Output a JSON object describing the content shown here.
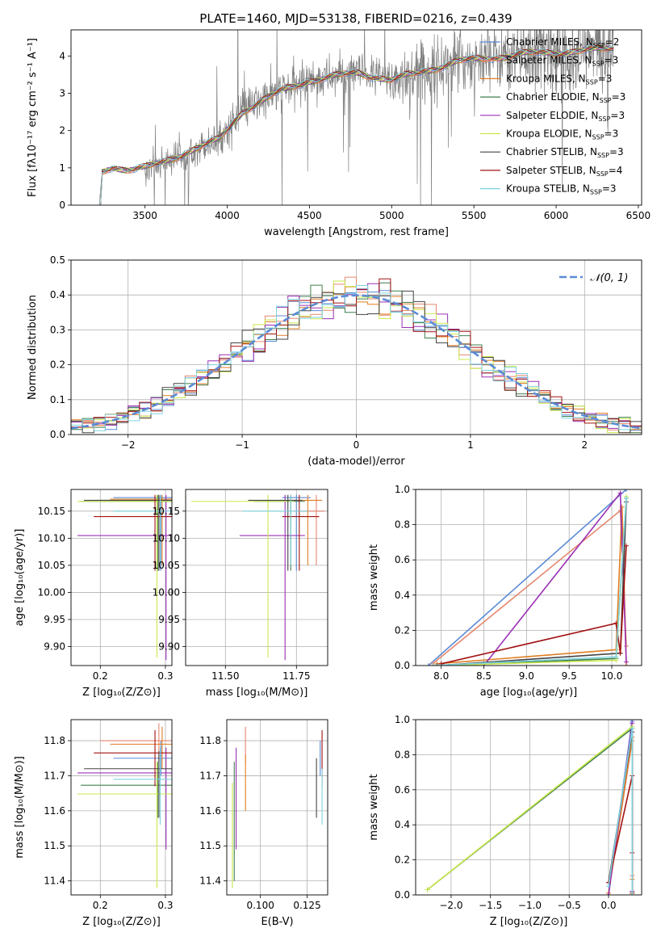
{
  "figure_title": "PLATE=1460, MJD=53138, FIBERID=0216, z=0.439",
  "legend_models": [
    {
      "name": "Chabrier MILES",
      "nssp": "2",
      "color": "#5b8bd6"
    },
    {
      "name": "Salpeter MILES",
      "nssp": "3",
      "color": "#e5866e"
    },
    {
      "name": "Kroupa MILES",
      "nssp": "3",
      "color": "#e07d22"
    },
    {
      "name": "Chabrier ELODIE",
      "nssp": "3",
      "color": "#3f7f4f"
    },
    {
      "name": "Salpeter ELODIE",
      "nssp": "3",
      "color": "#9b30b5"
    },
    {
      "name": "Kroupa ELODIE",
      "nssp": "3",
      "color": "#c9e84a"
    },
    {
      "name": "Chabrier STELIB",
      "nssp": "3",
      "color": "#444444"
    },
    {
      "name": "Salpeter STELIB",
      "nssp": "4",
      "color": "#a31212"
    },
    {
      "name": "Kroupa STELIB",
      "nssp": "3",
      "color": "#7fd3e0"
    }
  ],
  "chart_data": [
    {
      "id": "spectrum",
      "type": "line",
      "xlabel": "wavelength [Angstrom, rest frame]",
      "ylabel": "Flux [fλ10⁻¹⁷ erg cm⁻² s⁻¹ A⁻¹]",
      "xlim": [
        3050,
        6520
      ],
      "ylim": [
        0,
        4.7
      ],
      "xticks": [
        3500,
        4000,
        4500,
        5000,
        5500,
        6000,
        6500
      ],
      "yticks": [
        0,
        1,
        2,
        3,
        4
      ],
      "grid": false,
      "data_color": "#808080",
      "observed_range": [
        3200,
        6350
      ],
      "model_range": [
        3220,
        6350
      ],
      "continuum": {
        "x": [
          3220,
          3240,
          3300,
          3400,
          3500,
          3600,
          3800,
          3950,
          4100,
          4300,
          4500,
          4800,
          5000,
          5200,
          5400,
          5600,
          5800,
          6000,
          6200,
          6350
        ],
        "y": [
          0.0,
          0.88,
          1.02,
          0.97,
          1.0,
          1.12,
          1.52,
          1.75,
          2.55,
          3.0,
          3.35,
          3.55,
          3.35,
          3.6,
          3.85,
          3.95,
          4.05,
          4.1,
          4.15,
          4.2
        ]
      },
      "legend_position": "right"
    },
    {
      "id": "residuals",
      "type": "step",
      "xlabel": "(data-model)/error",
      "ylabel": "Normed distribution",
      "xlim": [
        -2.5,
        2.5
      ],
      "ylim": [
        0,
        0.5
      ],
      "xticks": [
        -2,
        -1,
        0,
        1,
        2
      ],
      "yticks": [
        0.0,
        0.1,
        0.2,
        0.3,
        0.4,
        0.5
      ],
      "grid": true,
      "bin_width": 0.1,
      "reference_curve": {
        "label": "𝒩(0, 1)",
        "mean": 0,
        "sigma": 1,
        "color": "#5b8bd6"
      },
      "legend_position": "top-right"
    },
    {
      "id": "age_vs_Z",
      "type": "errorbar",
      "xlabel": "Z [log₁₀(Z/Z⊙)]",
      "ylabel": "age  [log₁₀(age/yr)]",
      "xlim": [
        0.155,
        0.31
      ],
      "ylim": [
        9.865,
        10.19
      ],
      "xticks": [
        0.2,
        0.3
      ],
      "yticks": [
        9.9,
        9.95,
        10.0,
        10.05,
        10.1,
        10.15
      ],
      "grid": true,
      "points": [
        {
          "series": "Chabrier MILES",
          "x": 0.293,
          "xlo": 0.22,
          "xhi": 0.31,
          "y": 10.175,
          "ylo": 10.04,
          "yhi": 10.18
        },
        {
          "series": "Salpeter MILES",
          "x": 0.29,
          "xlo": 0.2,
          "xhi": 0.31,
          "y": 10.17,
          "ylo": 10.05,
          "yhi": 10.18
        },
        {
          "series": "Kroupa MILES",
          "x": 0.295,
          "xlo": 0.215,
          "xhi": 0.31,
          "y": 10.172,
          "ylo": 10.05,
          "yhi": 10.18
        },
        {
          "series": "Chabrier ELODIE",
          "x": 0.288,
          "xlo": 0.17,
          "xhi": 0.31,
          "y": 10.168,
          "ylo": 10.04,
          "yhi": 10.18
        },
        {
          "series": "Salpeter ELODIE",
          "x": 0.301,
          "xlo": 0.165,
          "xhi": 0.31,
          "y": 10.105,
          "ylo": 9.875,
          "yhi": 10.18
        },
        {
          "series": "Kroupa ELODIE",
          "x": 0.287,
          "xlo": 0.165,
          "xhi": 0.31,
          "y": 10.168,
          "ylo": 9.88,
          "yhi": 10.18
        },
        {
          "series": "Chabrier STELIB",
          "x": 0.29,
          "xlo": 0.175,
          "xhi": 0.31,
          "y": 10.17,
          "ylo": 10.04,
          "yhi": 10.18
        },
        {
          "series": "Salpeter STELIB",
          "x": 0.284,
          "xlo": 0.19,
          "xhi": 0.31,
          "y": 10.14,
          "ylo": 10.04,
          "yhi": 10.18
        },
        {
          "series": "Kroupa STELIB",
          "x": 0.292,
          "xlo": 0.22,
          "xhi": 0.31,
          "y": 10.15,
          "ylo": 10.05,
          "yhi": 10.18
        }
      ]
    },
    {
      "id": "age_vs_mass",
      "type": "errorbar",
      "xlabel": "mass [log₁₀(M/M⊙)]",
      "ylabel": "",
      "xlim": [
        11.36,
        11.86
      ],
      "ylim": [
        9.865,
        10.19
      ],
      "xticks": [
        11.5,
        11.75
      ],
      "yticks": [
        9.9,
        9.95,
        10.0,
        10.05,
        10.1,
        10.15
      ],
      "grid": true,
      "points": [
        {
          "series": "Chabrier MILES",
          "x": 11.75,
          "xlo": 11.7,
          "xhi": 11.8,
          "y": 10.175,
          "ylo": 10.04,
          "yhi": 10.18
        },
        {
          "series": "Salpeter MILES",
          "x": 11.82,
          "xlo": 11.74,
          "xhi": 11.85,
          "y": 10.15,
          "ylo": 10.05,
          "yhi": 10.18
        },
        {
          "series": "Kroupa MILES",
          "x": 11.79,
          "xlo": 11.72,
          "xhi": 11.84,
          "y": 10.17,
          "ylo": 10.05,
          "yhi": 10.18
        },
        {
          "series": "Chabrier ELODIE",
          "x": 11.73,
          "xlo": 11.6,
          "xhi": 11.78,
          "y": 10.168,
          "ylo": 10.04,
          "yhi": 10.18
        },
        {
          "series": "Salpeter ELODIE",
          "x": 11.71,
          "xlo": 11.55,
          "xhi": 11.78,
          "y": 10.105,
          "ylo": 9.875,
          "yhi": 10.18
        },
        {
          "series": "Kroupa ELODIE",
          "x": 11.65,
          "xlo": 11.38,
          "xhi": 11.74,
          "y": 10.168,
          "ylo": 9.88,
          "yhi": 10.18
        },
        {
          "series": "Chabrier STELIB",
          "x": 11.72,
          "xlo": 11.58,
          "xhi": 11.77,
          "y": 10.17,
          "ylo": 10.04,
          "yhi": 10.18
        },
        {
          "series": "Salpeter STELIB",
          "x": 11.76,
          "xlo": 11.7,
          "xhi": 11.83,
          "y": 10.14,
          "ylo": 10.04,
          "yhi": 10.18
        },
        {
          "series": "Kroupa STELIB",
          "x": 11.73,
          "xlo": 11.56,
          "xhi": 11.79,
          "y": 10.15,
          "ylo": 10.05,
          "yhi": 10.18
        }
      ]
    },
    {
      "id": "mass_weight_vs_age",
      "type": "line",
      "xlabel": "age  [log₁₀(age/yr)]",
      "ylabel": "mass weight",
      "xlim": [
        7.7,
        10.35
      ],
      "ylim": [
        0,
        1
      ],
      "xticks": [
        8.0,
        8.5,
        9.0,
        9.5,
        10.0
      ],
      "yticks": [
        0.0,
        0.2,
        0.4,
        0.6,
        0.8,
        1.0
      ],
      "grid": true,
      "series": [
        {
          "name": "Chabrier MILES",
          "x": [
            7.85,
            10.17
          ],
          "y": [
            0.0,
            1.0
          ]
        },
        {
          "name": "Salpeter MILES",
          "x": [
            7.9,
            10.1,
            10.17
          ],
          "y": [
            0.01,
            0.88,
            0.11
          ]
        },
        {
          "name": "Kroupa MILES",
          "x": [
            7.95,
            10.05,
            10.12,
            10.17
          ],
          "y": [
            0.01,
            0.09,
            0.9,
            0.0
          ]
        },
        {
          "name": "Chabrier ELODIE",
          "x": [
            8.0,
            10.05,
            10.17
          ],
          "y": [
            0.0,
            0.04,
            0.95
          ]
        },
        {
          "name": "Salpeter ELODIE",
          "x": [
            8.5,
            10.1,
            10.17
          ],
          "y": [
            0.0,
            0.98,
            0.02
          ]
        },
        {
          "name": "Kroupa ELODIE",
          "x": [
            7.95,
            10.05,
            10.17
          ],
          "y": [
            0.0,
            0.03,
            0.96
          ]
        },
        {
          "name": "Chabrier STELIB",
          "x": [
            7.95,
            10.1,
            10.17
          ],
          "y": [
            0.0,
            0.07,
            0.93
          ]
        },
        {
          "name": "Salpeter STELIB",
          "x": [
            8.0,
            10.05,
            10.1,
            10.17
          ],
          "y": [
            0.01,
            0.24,
            0.07,
            0.68
          ]
        },
        {
          "name": "Kroupa STELIB",
          "x": [
            7.9,
            10.05,
            10.17
          ],
          "y": [
            0.0,
            0.05,
            0.95
          ]
        }
      ]
    },
    {
      "id": "mass_vs_Z",
      "type": "errorbar",
      "xlabel": "Z [log₁₀(Z/Z⊙)]",
      "ylabel": "mass [log₁₀(M/M⊙)]",
      "xlim": [
        0.155,
        0.31
      ],
      "ylim": [
        11.36,
        11.86
      ],
      "xticks": [
        0.2,
        0.3
      ],
      "yticks": [
        11.4,
        11.5,
        11.6,
        11.7,
        11.8
      ],
      "grid": true,
      "points": [
        {
          "series": "Chabrier MILES",
          "x": 0.293,
          "xlo": 0.22,
          "xhi": 0.31,
          "y": 11.75,
          "ylo": 11.7,
          "yhi": 11.8
        },
        {
          "series": "Salpeter MILES",
          "x": 0.29,
          "xlo": 0.2,
          "xhi": 0.31,
          "y": 11.8,
          "ylo": 11.74,
          "yhi": 11.85
        },
        {
          "series": "Kroupa MILES",
          "x": 0.295,
          "xlo": 0.215,
          "xhi": 0.31,
          "y": 11.79,
          "ylo": 11.72,
          "yhi": 11.84
        },
        {
          "series": "Chabrier ELODIE",
          "x": 0.288,
          "xlo": 0.17,
          "xhi": 0.31,
          "y": 11.673,
          "ylo": 11.58,
          "yhi": 11.74
        },
        {
          "series": "Salpeter ELODIE",
          "x": 0.301,
          "xlo": 0.165,
          "xhi": 0.31,
          "y": 11.708,
          "ylo": 11.49,
          "yhi": 11.78
        },
        {
          "series": "Kroupa ELODIE",
          "x": 0.287,
          "xlo": 0.165,
          "xhi": 0.31,
          "y": 11.648,
          "ylo": 11.38,
          "yhi": 11.74
        },
        {
          "series": "Chabrier STELIB",
          "x": 0.29,
          "xlo": 0.175,
          "xhi": 0.31,
          "y": 11.72,
          "ylo": 11.58,
          "yhi": 11.77
        },
        {
          "series": "Salpeter STELIB",
          "x": 0.284,
          "xlo": 0.19,
          "xhi": 0.31,
          "y": 11.765,
          "ylo": 11.67,
          "yhi": 11.83
        },
        {
          "series": "Kroupa STELIB",
          "x": 0.292,
          "xlo": 0.22,
          "xhi": 0.31,
          "y": 11.69,
          "ylo": 11.56,
          "yhi": 11.78
        }
      ]
    },
    {
      "id": "mass_vs_EBV",
      "type": "errorbar",
      "xlabel": "E(B-V)",
      "ylabel": "",
      "xlim": [
        0.082,
        0.136
      ],
      "ylim": [
        11.36,
        11.86
      ],
      "xticks": [
        0.1,
        0.125
      ],
      "yticks": [
        11.4,
        11.5,
        11.6,
        11.7,
        11.8
      ],
      "grid": true,
      "points": [
        {
          "series": "Chabrier MILES",
          "x": 0.132,
          "y": 11.75,
          "ylo": 11.7,
          "yhi": 11.8
        },
        {
          "series": "Salpeter MILES",
          "x": 0.092,
          "y": 11.8,
          "ylo": 11.74,
          "yhi": 11.84
        },
        {
          "series": "Kroupa MILES",
          "x": 0.092,
          "y": 11.68,
          "ylo": 11.6,
          "yhi": 11.76
        },
        {
          "series": "Chabrier ELODIE",
          "x": 0.086,
          "y": 11.67,
          "ylo": 11.4,
          "yhi": 11.74
        },
        {
          "series": "Salpeter ELODIE",
          "x": 0.087,
          "y": 11.7,
          "ylo": 11.49,
          "yhi": 11.78
        },
        {
          "series": "Kroupa ELODIE",
          "x": 0.085,
          "y": 11.6,
          "ylo": 11.38,
          "yhi": 11.68
        },
        {
          "series": "Chabrier STELIB",
          "x": 0.13,
          "y": 11.68,
          "ylo": 11.58,
          "yhi": 11.75
        },
        {
          "series": "Salpeter STELIB",
          "x": 0.133,
          "y": 11.77,
          "ylo": 11.67,
          "yhi": 11.83
        },
        {
          "series": "Kroupa STELIB",
          "x": 0.133,
          "y": 11.65,
          "ylo": 11.56,
          "yhi": 11.72
        }
      ]
    },
    {
      "id": "mass_weight_vs_Z",
      "type": "line",
      "xlabel": "Z [log₁₀(Z/Z⊙)]",
      "ylabel": "mass weight",
      "xlim": [
        -2.45,
        0.42
      ],
      "ylim": [
        0,
        1
      ],
      "xticks": [
        -2.0,
        -1.5,
        -1.0,
        -0.5,
        0.0
      ],
      "yticks": [
        0.0,
        0.2,
        0.4,
        0.6,
        0.8,
        1.0
      ],
      "grid": true,
      "series": [
        {
          "name": "Chabrier MILES",
          "x": [
            0.0,
            0.3,
            0.3
          ],
          "y": [
            0.0,
            1.0,
            0.99
          ]
        },
        {
          "name": "Salpeter MILES",
          "x": [
            0.0,
            0.3,
            0.3
          ],
          "y": [
            0.01,
            0.88,
            0.11
          ]
        },
        {
          "name": "Kroupa MILES",
          "x": [
            0.0,
            0.3,
            0.3
          ],
          "y": [
            0.01,
            0.9,
            0.09
          ]
        },
        {
          "name": "Chabrier ELODIE",
          "x": [
            -2.3,
            0.3,
            0.3
          ],
          "y": [
            0.03,
            0.95,
            0.02
          ]
        },
        {
          "name": "Salpeter ELODIE",
          "x": [
            0.0,
            0.3,
            0.3
          ],
          "y": [
            0.0,
            0.98,
            0.02
          ]
        },
        {
          "name": "Kroupa ELODIE",
          "x": [
            -2.3,
            0.3,
            0.3
          ],
          "y": [
            0.03,
            0.96,
            0.01
          ]
        },
        {
          "name": "Chabrier STELIB",
          "x": [
            0.0,
            0.3,
            0.3
          ],
          "y": [
            0.07,
            0.93,
            0.0
          ]
        },
        {
          "name": "Salpeter STELIB",
          "x": [
            0.0,
            0.3,
            0.3,
            0.3
          ],
          "y": [
            0.07,
            0.68,
            0.24,
            0.01
          ]
        },
        {
          "name": "Kroupa STELIB",
          "x": [
            0.0,
            0.3,
            0.3
          ],
          "y": [
            0.05,
            0.95,
            0.0
          ]
        }
      ]
    }
  ]
}
